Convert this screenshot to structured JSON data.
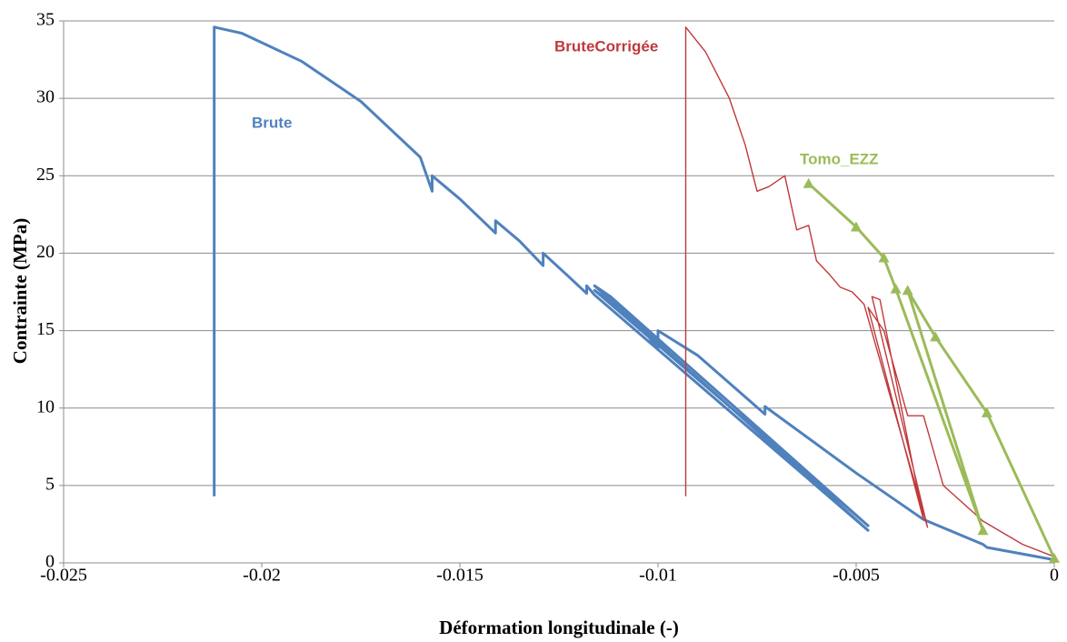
{
  "chart_data": {
    "type": "line",
    "x_label": "Déformation longitudinale (-)",
    "y_label": "Contrainte (MPa)",
    "xlim": [
      -0.025,
      0
    ],
    "xticks": [
      -0.025,
      -0.02,
      -0.015,
      -0.01,
      -0.005,
      0
    ],
    "ylim": [
      0,
      35
    ],
    "yticks": [
      0,
      5,
      10,
      15,
      20,
      25,
      30,
      35
    ],
    "grid": true,
    "series": [
      {
        "name": "Brute",
        "color": "#4f81bd",
        "marker": "none",
        "x": [
          -0.0212,
          -0.0212,
          -0.0205,
          -0.019,
          -0.0175,
          -0.016,
          -0.0157,
          -0.0157,
          -0.015,
          -0.0141,
          -0.0141,
          -0.0135,
          -0.0129,
          -0.0129,
          -0.0123,
          -0.0118,
          -0.0118,
          -0.0116,
          -0.0047,
          -0.0116,
          -0.0112,
          -0.0047,
          -0.0116,
          -0.0105,
          -0.01,
          -0.01,
          -0.009,
          -0.0073,
          -0.0073,
          -0.005,
          -0.0033,
          -0.0018,
          -0.0017,
          0
        ],
        "values": [
          4.3,
          34.6,
          34.2,
          32.4,
          29.8,
          26.2,
          24.0,
          25.0,
          23.5,
          21.3,
          22.1,
          20.8,
          19.2,
          20.0,
          18.6,
          17.4,
          17.9,
          17.3,
          2.1,
          17.9,
          17.2,
          2.4,
          17.6,
          15.5,
          13.8,
          15.0,
          13.4,
          9.6,
          10.1,
          5.8,
          2.8,
          1.2,
          1.0,
          0.2
        ]
      },
      {
        "name": "BruteCorrigée",
        "color": "#c0393b",
        "marker": "none",
        "x": [
          -0.0093,
          -0.0093,
          -0.0088,
          -0.0082,
          -0.0078,
          -0.0075,
          -0.0072,
          -0.0068,
          -0.0065,
          -0.0062,
          -0.006,
          -0.0057,
          -0.0054,
          -0.0051,
          -0.0048,
          -0.0032,
          -0.0046,
          -0.0044,
          -0.0033,
          -0.0047,
          -0.0043,
          -0.0037,
          -0.0033,
          -0.0028,
          -0.0018,
          -0.0008,
          0
        ],
        "values": [
          4.3,
          34.6,
          33.0,
          30.0,
          27.0,
          24.0,
          24.3,
          25.0,
          21.5,
          21.8,
          19.5,
          18.7,
          17.8,
          17.5,
          16.7,
          2.3,
          17.2,
          17.0,
          2.8,
          16.5,
          15.0,
          9.5,
          9.5,
          5.0,
          2.7,
          1.2,
          0.4
        ]
      },
      {
        "name": "Tomo_EZZ",
        "color": "#9bbb59",
        "marker": "triangle",
        "x": [
          -0.0062,
          -0.005,
          -0.0043,
          -0.004,
          -0.0018,
          -0.0037,
          -0.003,
          -0.0017,
          0
        ],
        "values": [
          24.5,
          21.7,
          19.7,
          17.7,
          2.1,
          17.6,
          14.6,
          9.7,
          0.3
        ]
      }
    ]
  }
}
